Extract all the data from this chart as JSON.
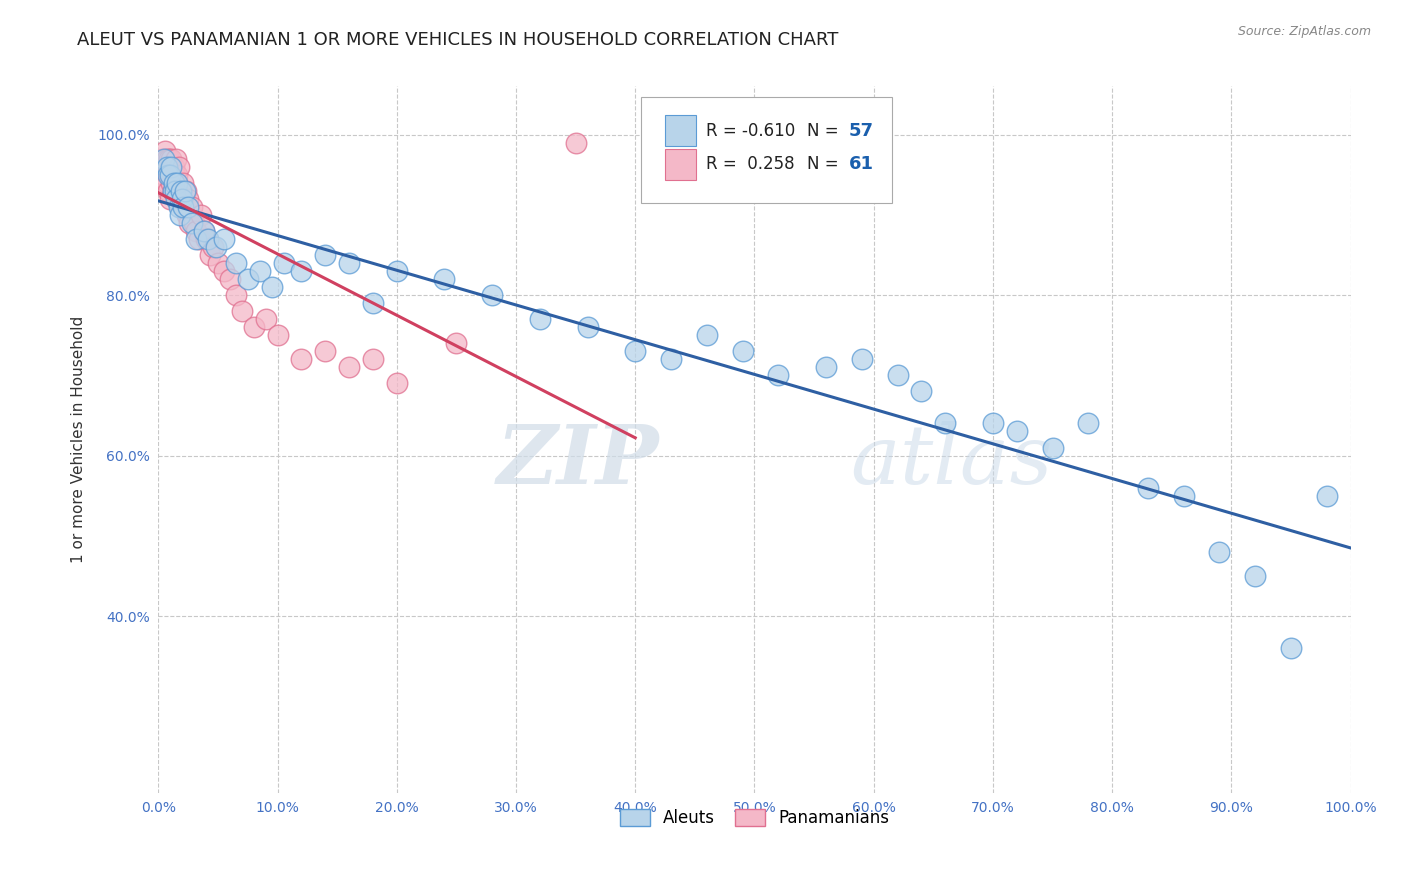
{
  "title": "ALEUT VS PANAMANIAN 1 OR MORE VEHICLES IN HOUSEHOLD CORRELATION CHART",
  "source": "Source: ZipAtlas.com",
  "ylabel": "1 or more Vehicles in Household",
  "xlabel": "",
  "xlim": [
    0.0,
    1.0
  ],
  "ylim": [
    0.18,
    1.06
  ],
  "xticks": [
    0.0,
    0.1,
    0.2,
    0.3,
    0.4,
    0.5,
    0.6,
    0.7,
    0.8,
    0.9,
    1.0
  ],
  "yticks": [
    0.4,
    0.6,
    0.8,
    1.0
  ],
  "r_aleut": -0.61,
  "n_aleut": 57,
  "r_pana": 0.258,
  "n_pana": 61,
  "aleut_color": "#b8d4ea",
  "aleut_edge": "#5b9bd5",
  "pana_color": "#f4b8c8",
  "pana_edge": "#e07090",
  "aleut_line_color": "#2e5fa3",
  "pana_line_color": "#d04060",
  "aleut_x": [
    0.005,
    0.007,
    0.008,
    0.01,
    0.011,
    0.012,
    0.013,
    0.014,
    0.015,
    0.016,
    0.017,
    0.018,
    0.019,
    0.02,
    0.021,
    0.022,
    0.025,
    0.028,
    0.032,
    0.038,
    0.042,
    0.048,
    0.055,
    0.065,
    0.075,
    0.085,
    0.095,
    0.105,
    0.12,
    0.14,
    0.16,
    0.18,
    0.2,
    0.24,
    0.28,
    0.32,
    0.36,
    0.4,
    0.43,
    0.46,
    0.49,
    0.52,
    0.56,
    0.59,
    0.62,
    0.64,
    0.66,
    0.7,
    0.72,
    0.75,
    0.78,
    0.83,
    0.86,
    0.89,
    0.92,
    0.95,
    0.98
  ],
  "aleut_y": [
    0.97,
    0.96,
    0.95,
    0.95,
    0.96,
    0.93,
    0.94,
    0.93,
    0.92,
    0.94,
    0.91,
    0.9,
    0.93,
    0.92,
    0.91,
    0.93,
    0.91,
    0.89,
    0.87,
    0.88,
    0.87,
    0.86,
    0.87,
    0.84,
    0.82,
    0.83,
    0.81,
    0.84,
    0.83,
    0.85,
    0.84,
    0.79,
    0.83,
    0.82,
    0.8,
    0.77,
    0.76,
    0.73,
    0.72,
    0.75,
    0.73,
    0.7,
    0.71,
    0.72,
    0.7,
    0.68,
    0.64,
    0.64,
    0.63,
    0.61,
    0.64,
    0.56,
    0.55,
    0.48,
    0.45,
    0.36,
    0.55
  ],
  "pana_x": [
    0.003,
    0.004,
    0.005,
    0.005,
    0.006,
    0.006,
    0.007,
    0.007,
    0.008,
    0.008,
    0.009,
    0.009,
    0.01,
    0.01,
    0.011,
    0.011,
    0.012,
    0.012,
    0.013,
    0.013,
    0.014,
    0.014,
    0.015,
    0.015,
    0.016,
    0.016,
    0.017,
    0.017,
    0.018,
    0.019,
    0.02,
    0.021,
    0.022,
    0.023,
    0.024,
    0.025,
    0.026,
    0.028,
    0.03,
    0.032,
    0.034,
    0.036,
    0.038,
    0.04,
    0.043,
    0.046,
    0.05,
    0.055,
    0.06,
    0.065,
    0.07,
    0.08,
    0.09,
    0.1,
    0.12,
    0.14,
    0.16,
    0.18,
    0.2,
    0.25,
    0.35
  ],
  "pana_y": [
    0.97,
    0.96,
    0.95,
    0.97,
    0.96,
    0.98,
    0.94,
    0.97,
    0.93,
    0.96,
    0.95,
    0.97,
    0.92,
    0.96,
    0.94,
    0.97,
    0.93,
    0.95,
    0.94,
    0.96,
    0.93,
    0.95,
    0.94,
    0.97,
    0.92,
    0.95,
    0.93,
    0.96,
    0.93,
    0.92,
    0.92,
    0.94,
    0.91,
    0.93,
    0.9,
    0.92,
    0.89,
    0.91,
    0.89,
    0.88,
    0.87,
    0.9,
    0.88,
    0.87,
    0.85,
    0.86,
    0.84,
    0.83,
    0.82,
    0.8,
    0.78,
    0.76,
    0.77,
    0.75,
    0.72,
    0.73,
    0.71,
    0.72,
    0.69,
    0.74,
    0.99
  ],
  "watermark_zip": "ZIP",
  "watermark_atlas": "atlas",
  "background_color": "#ffffff",
  "grid_color": "#c8c8c8",
  "title_fontsize": 13,
  "tick_fontsize": 10,
  "ylabel_fontsize": 11
}
